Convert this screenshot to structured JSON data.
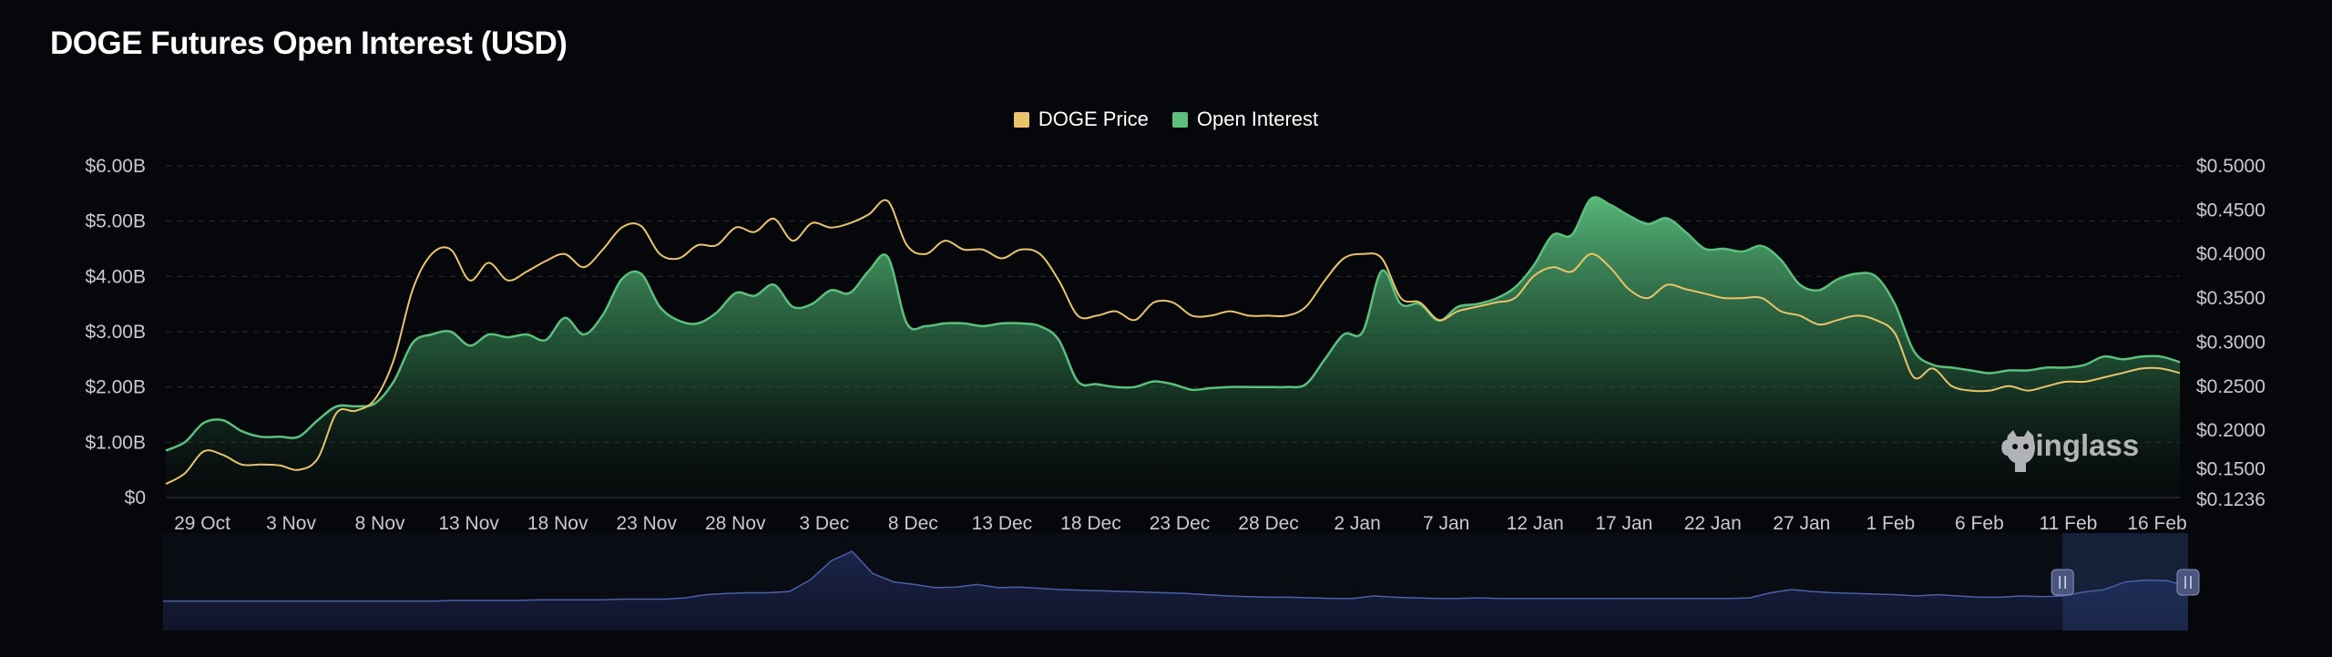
{
  "title": "DOGE Futures Open Interest (USD)",
  "watermark": "coinglass",
  "colors": {
    "background": "#06070b",
    "price": "#e9c46a",
    "open_interest": "#5bbf7e",
    "navigator": "#4a5fa8"
  },
  "icons": [
    "coinglass-logo-icon",
    "navigator-handle-icon"
  ],
  "legend": [
    {
      "label": "DOGE Price",
      "color": "#e9c46a"
    },
    {
      "label": "Open Interest",
      "color": "#5bbf7e"
    }
  ],
  "chart_data": {
    "type": "area",
    "title": "DOGE Futures Open Interest (USD)",
    "legend_position": "top-center",
    "grid": true,
    "x_labels": [
      "29 Oct",
      "3 Nov",
      "8 Nov",
      "13 Nov",
      "18 Nov",
      "23 Nov",
      "28 Nov",
      "3 Dec",
      "8 Dec",
      "13 Dec",
      "18 Dec",
      "23 Dec",
      "28 Dec",
      "2 Jan",
      "7 Jan",
      "12 Jan",
      "17 Jan",
      "22 Jan",
      "27 Jan",
      "1 Feb",
      "6 Feb",
      "11 Feb",
      "16 Feb"
    ],
    "y_left": {
      "ticks": [
        "$0",
        "$1.00B",
        "$2.00B",
        "$3.00B",
        "$4.00B",
        "$5.00B",
        "$6.00B"
      ],
      "range": [
        0,
        6
      ]
    },
    "y_right": {
      "ticks": [
        "$0.1236",
        "$0.1500",
        "$0.2000",
        "$0.2500",
        "$0.3000",
        "$0.3500",
        "$0.4000",
        "$0.4500",
        "$0.5000"
      ],
      "range": [
        0.1236,
        0.5
      ]
    },
    "series": [
      {
        "name": "Open Interest",
        "axis": "left",
        "points": [
          [
            0,
            0.85
          ],
          [
            1,
            1.0
          ],
          [
            2,
            1.35
          ],
          [
            3,
            1.4
          ],
          [
            4,
            1.2
          ],
          [
            5,
            1.1
          ],
          [
            6,
            1.1
          ],
          [
            7,
            1.1
          ],
          [
            8,
            1.4
          ],
          [
            9,
            1.65
          ],
          [
            10,
            1.65
          ],
          [
            11,
            1.7
          ],
          [
            12,
            2.1
          ],
          [
            13,
            2.8
          ],
          [
            14,
            2.95
          ],
          [
            15,
            3.0
          ],
          [
            16,
            2.75
          ],
          [
            17,
            2.95
          ],
          [
            18,
            2.9
          ],
          [
            19,
            2.95
          ],
          [
            20,
            2.85
          ],
          [
            21,
            3.25
          ],
          [
            22,
            2.95
          ],
          [
            23,
            3.3
          ],
          [
            24,
            3.95
          ],
          [
            25,
            4.05
          ],
          [
            26,
            3.45
          ],
          [
            27,
            3.2
          ],
          [
            28,
            3.15
          ],
          [
            29,
            3.35
          ],
          [
            30,
            3.7
          ],
          [
            31,
            3.65
          ],
          [
            32,
            3.85
          ],
          [
            33,
            3.45
          ],
          [
            34,
            3.5
          ],
          [
            35,
            3.75
          ],
          [
            36,
            3.7
          ],
          [
            37,
            4.1
          ],
          [
            38,
            4.35
          ],
          [
            39,
            3.15
          ],
          [
            40,
            3.1
          ],
          [
            41,
            3.15
          ],
          [
            42,
            3.15
          ],
          [
            43,
            3.1
          ],
          [
            44,
            3.15
          ],
          [
            45,
            3.15
          ],
          [
            46,
            3.1
          ],
          [
            47,
            2.85
          ],
          [
            48,
            2.1
          ],
          [
            49,
            2.05
          ],
          [
            50,
            2.0
          ],
          [
            51,
            2.0
          ],
          [
            52,
            2.1
          ],
          [
            53,
            2.05
          ],
          [
            54,
            1.95
          ],
          [
            55,
            1.98
          ],
          [
            56,
            2.0
          ],
          [
            57,
            2.0
          ],
          [
            58,
            2.0
          ],
          [
            59,
            2.0
          ],
          [
            60,
            2.05
          ],
          [
            61,
            2.5
          ],
          [
            62,
            2.95
          ],
          [
            63,
            3.0
          ],
          [
            64,
            4.1
          ],
          [
            65,
            3.5
          ],
          [
            66,
            3.5
          ],
          [
            67,
            3.2
          ],
          [
            68,
            3.45
          ],
          [
            69,
            3.5
          ],
          [
            70,
            3.6
          ],
          [
            71,
            3.8
          ],
          [
            72,
            4.2
          ],
          [
            73,
            4.75
          ],
          [
            74,
            4.75
          ],
          [
            75,
            5.4
          ],
          [
            76,
            5.3
          ],
          [
            77,
            5.1
          ],
          [
            78,
            4.95
          ],
          [
            79,
            5.05
          ],
          [
            80,
            4.8
          ],
          [
            81,
            4.5
          ],
          [
            82,
            4.5
          ],
          [
            83,
            4.45
          ],
          [
            84,
            4.55
          ],
          [
            85,
            4.3
          ],
          [
            86,
            3.85
          ],
          [
            87,
            3.75
          ],
          [
            88,
            3.95
          ],
          [
            89,
            4.05
          ],
          [
            90,
            4.0
          ],
          [
            91,
            3.5
          ],
          [
            92,
            2.65
          ],
          [
            93,
            2.4
          ],
          [
            94,
            2.35
          ],
          [
            95,
            2.3
          ],
          [
            96,
            2.25
          ],
          [
            97,
            2.3
          ],
          [
            98,
            2.3
          ],
          [
            99,
            2.35
          ],
          [
            100,
            2.35
          ],
          [
            101,
            2.4
          ],
          [
            102,
            2.55
          ],
          [
            103,
            2.5
          ],
          [
            104,
            2.55
          ],
          [
            105,
            2.55
          ],
          [
            106,
            2.45
          ]
        ]
      },
      {
        "name": "DOGE Price",
        "axis": "right",
        "points": [
          [
            0,
            0.139
          ],
          [
            1,
            0.151
          ],
          [
            2,
            0.176
          ],
          [
            3,
            0.172
          ],
          [
            4,
            0.161
          ],
          [
            5,
            0.161
          ],
          [
            6,
            0.16
          ],
          [
            7,
            0.155
          ],
          [
            8,
            0.168
          ],
          [
            9,
            0.22
          ],
          [
            10,
            0.222
          ],
          [
            11,
            0.235
          ],
          [
            12,
            0.28
          ],
          [
            13,
            0.36
          ],
          [
            14,
            0.4
          ],
          [
            15,
            0.405
          ],
          [
            16,
            0.37
          ],
          [
            17,
            0.39
          ],
          [
            18,
            0.37
          ],
          [
            19,
            0.38
          ],
          [
            20,
            0.392
          ],
          [
            21,
            0.4
          ],
          [
            22,
            0.385
          ],
          [
            23,
            0.405
          ],
          [
            24,
            0.43
          ],
          [
            25,
            0.432
          ],
          [
            26,
            0.4
          ],
          [
            27,
            0.395
          ],
          [
            28,
            0.41
          ],
          [
            29,
            0.41
          ],
          [
            30,
            0.43
          ],
          [
            31,
            0.425
          ],
          [
            32,
            0.44
          ],
          [
            33,
            0.415
          ],
          [
            34,
            0.435
          ],
          [
            35,
            0.43
          ],
          [
            36,
            0.435
          ],
          [
            37,
            0.445
          ],
          [
            38,
            0.46
          ],
          [
            39,
            0.41
          ],
          [
            40,
            0.4
          ],
          [
            41,
            0.415
          ],
          [
            42,
            0.405
          ],
          [
            43,
            0.405
          ],
          [
            44,
            0.395
          ],
          [
            45,
            0.405
          ],
          [
            46,
            0.4
          ],
          [
            47,
            0.37
          ],
          [
            48,
            0.33
          ],
          [
            49,
            0.33
          ],
          [
            50,
            0.335
          ],
          [
            51,
            0.325
          ],
          [
            52,
            0.345
          ],
          [
            53,
            0.345
          ],
          [
            54,
            0.33
          ],
          [
            55,
            0.33
          ],
          [
            56,
            0.335
          ],
          [
            57,
            0.33
          ],
          [
            58,
            0.33
          ],
          [
            59,
            0.33
          ],
          [
            60,
            0.34
          ],
          [
            61,
            0.37
          ],
          [
            62,
            0.395
          ],
          [
            63,
            0.4
          ],
          [
            64,
            0.395
          ],
          [
            65,
            0.35
          ],
          [
            66,
            0.345
          ],
          [
            67,
            0.325
          ],
          [
            68,
            0.335
          ],
          [
            69,
            0.34
          ],
          [
            70,
            0.345
          ],
          [
            71,
            0.35
          ],
          [
            72,
            0.375
          ],
          [
            73,
            0.385
          ],
          [
            74,
            0.38
          ],
          [
            75,
            0.4
          ],
          [
            76,
            0.385
          ],
          [
            77,
            0.36
          ],
          [
            78,
            0.35
          ],
          [
            79,
            0.365
          ],
          [
            80,
            0.36
          ],
          [
            81,
            0.355
          ],
          [
            82,
            0.35
          ],
          [
            83,
            0.35
          ],
          [
            84,
            0.35
          ],
          [
            85,
            0.335
          ],
          [
            86,
            0.33
          ],
          [
            87,
            0.32
          ],
          [
            88,
            0.325
          ],
          [
            89,
            0.33
          ],
          [
            90,
            0.325
          ],
          [
            91,
            0.31
          ],
          [
            92,
            0.26
          ],
          [
            93,
            0.27
          ],
          [
            94,
            0.25
          ],
          [
            95,
            0.245
          ],
          [
            96,
            0.245
          ],
          [
            97,
            0.25
          ],
          [
            98,
            0.245
          ],
          [
            99,
            0.25
          ],
          [
            100,
            0.255
          ],
          [
            101,
            0.255
          ],
          [
            102,
            0.26
          ],
          [
            103,
            0.265
          ],
          [
            104,
            0.27
          ],
          [
            105,
            0.27
          ],
          [
            106,
            0.265
          ]
        ]
      }
    ],
    "navigator": {
      "selected_range_fraction": [
        0.938,
        1.0
      ],
      "history_points": [
        0.12,
        0.12,
        0.12,
        0.12,
        0.12,
        0.12,
        0.12,
        0.12,
        0.12,
        0.12,
        0.12,
        0.12,
        0.12,
        0.12,
        0.13,
        0.13,
        0.13,
        0.13,
        0.14,
        0.14,
        0.14,
        0.14,
        0.15,
        0.15,
        0.15,
        0.17,
        0.22,
        0.24,
        0.25,
        0.25,
        0.27,
        0.45,
        0.75,
        0.9,
        0.55,
        0.42,
        0.38,
        0.33,
        0.34,
        0.38,
        0.33,
        0.34,
        0.32,
        0.3,
        0.29,
        0.28,
        0.27,
        0.26,
        0.25,
        0.24,
        0.22,
        0.2,
        0.19,
        0.18,
        0.18,
        0.17,
        0.16,
        0.16,
        0.2,
        0.18,
        0.17,
        0.16,
        0.16,
        0.17,
        0.16,
        0.16,
        0.16,
        0.16,
        0.16,
        0.16,
        0.16,
        0.16,
        0.16,
        0.16,
        0.16,
        0.16,
        0.17,
        0.25,
        0.3,
        0.27,
        0.25,
        0.24,
        0.23,
        0.22,
        0.2,
        0.22,
        0.2,
        0.18,
        0.18,
        0.2,
        0.19,
        0.2,
        0.26,
        0.3,
        0.42,
        0.45,
        0.44,
        0.34
      ]
    }
  }
}
